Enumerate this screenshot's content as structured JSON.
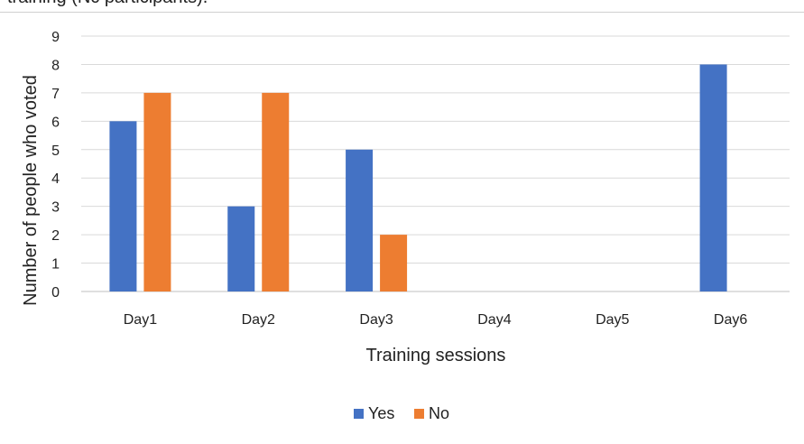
{
  "caption_fragment": "training (Nc participants).",
  "chart_data": {
    "type": "bar",
    "categories": [
      "Day1",
      "Day2",
      "Day3",
      "Day4",
      "Day5",
      "Day6"
    ],
    "series": [
      {
        "name": "Yes",
        "color": "#4472C4",
        "values": [
          6,
          3,
          5,
          0,
          0,
          8
        ]
      },
      {
        "name": "No",
        "color": "#ED7D31",
        "values": [
          7,
          7,
          2,
          0,
          0,
          0
        ]
      }
    ],
    "xlabel": "Training sessions",
    "ylabel": "Number of people who voted",
    "ylim": [
      0,
      9
    ],
    "yticks": [
      0,
      1,
      2,
      3,
      4,
      5,
      6,
      7,
      8,
      9
    ],
    "grid": true,
    "legend_position": "bottom"
  }
}
